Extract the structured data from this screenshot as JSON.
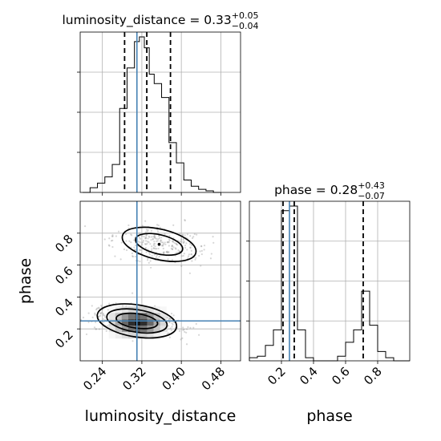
{
  "chart_data": {
    "type": "corner",
    "parameters": [
      "luminosity_distance",
      "phase"
    ],
    "truths": {
      "luminosity_distance": 0.31,
      "phase": 0.25
    },
    "panels": [
      {
        "id": "hist-luminosity_distance",
        "type": "histogram",
        "parameter": "luminosity_distance",
        "title": {
          "prefix": "luminosity_distance = ",
          "median": "0.33",
          "plus": "+0.05",
          "minus": "−0.04"
        },
        "xlim": [
          0.195,
          0.52
        ],
        "x_ticks": [
          0.24,
          0.32,
          0.4,
          0.48
        ],
        "quantiles": [
          0.285,
          0.33,
          0.378
        ],
        "bin_edges": [
          0.2,
          0.215,
          0.23,
          0.245,
          0.26,
          0.275,
          0.29,
          0.305,
          0.315,
          0.325,
          0.335,
          0.345,
          0.36,
          0.375,
          0.39,
          0.405,
          0.42,
          0.435,
          0.45,
          0.465,
          0.48
        ],
        "counts": [
          0,
          0.03,
          0.06,
          0.1,
          0.18,
          0.54,
          0.8,
          0.97,
          1.0,
          0.93,
          0.76,
          0.7,
          0.61,
          0.32,
          0.19,
          0.08,
          0.04,
          0.02,
          0.01,
          0
        ]
      },
      {
        "id": "hist-phase",
        "type": "histogram",
        "parameter": "phase",
        "title": {
          "prefix": "phase = ",
          "median": "0.28",
          "plus": "+0.43",
          "minus": "−0.07"
        },
        "xlim": [
          0.0,
          1.0
        ],
        "x_ticks": [
          0.2,
          0.4,
          0.6,
          0.8
        ],
        "x_tick_labels": [
          "0.2",
          "0.4",
          "0.6",
          "0.8"
        ],
        "quantiles": [
          0.21,
          0.28,
          0.71
        ],
        "bin_edges": [
          0.0,
          0.05,
          0.1,
          0.15,
          0.2,
          0.25,
          0.3,
          0.35,
          0.4,
          0.45,
          0.5,
          0.55,
          0.6,
          0.65,
          0.7,
          0.75,
          0.8,
          0.85,
          0.9,
          0.95,
          1.0
        ],
        "counts": [
          0.02,
          0.03,
          0.1,
          0.2,
          0.97,
          1.0,
          0.2,
          0.02,
          0.0,
          0.0,
          0.0,
          0.03,
          0.12,
          0.2,
          0.45,
          0.23,
          0.06,
          0.02,
          0.0,
          0.0
        ]
      },
      {
        "id": "joint-luminosity_distance-phase",
        "type": "2d-density",
        "x_parameter": "luminosity_distance",
        "y_parameter": "phase",
        "xlim": [
          0.195,
          0.52
        ],
        "ylim": [
          0.0,
          1.0
        ],
        "x_ticks": [
          0.24,
          0.32,
          0.4,
          0.48
        ],
        "x_tick_labels": [
          "0.24",
          "0.32",
          "0.40",
          "0.48"
        ],
        "y_ticks": [
          0.2,
          0.4,
          0.6,
          0.8
        ],
        "y_tick_labels": [
          "0.2",
          "0.4",
          "0.6",
          "0.8"
        ],
        "modes": [
          {
            "center": [
              0.31,
              0.25
            ],
            "peak_density": 1.0
          },
          {
            "center": [
              0.355,
              0.73
            ],
            "peak_density": 0.5
          }
        ],
        "xlabel": "luminosity_distance",
        "ylabel": "phase"
      }
    ],
    "bottom_right_xlabel": "phase"
  }
}
